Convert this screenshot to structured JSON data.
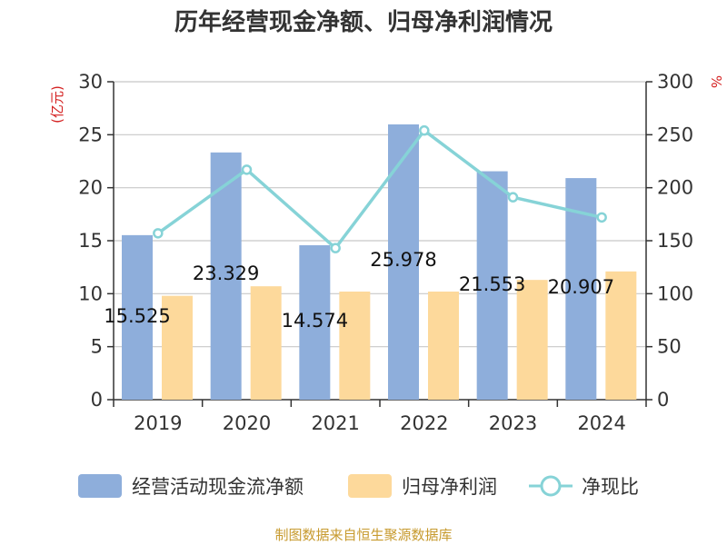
{
  "chart_data": {
    "type": "bar",
    "title": "历年经营现金净额、归母净利润情况",
    "categories": [
      "2019",
      "2020",
      "2021",
      "2022",
      "2023",
      "2024"
    ],
    "series": [
      {
        "name": "经营活动现金流净额",
        "type": "bar",
        "axis": "left",
        "color": "#8eaedb",
        "values": [
          15.525,
          23.329,
          14.574,
          25.978,
          21.553,
          20.907
        ]
      },
      {
        "name": "归母净利润",
        "type": "bar",
        "axis": "left",
        "color": "#fdd99b",
        "values": [
          9.8,
          10.7,
          10.2,
          10.2,
          11.3,
          12.1
        ]
      },
      {
        "name": "净现比",
        "type": "line",
        "axis": "right",
        "color": "#86d3d7",
        "values": [
          157,
          217,
          143,
          254,
          191,
          172
        ]
      }
    ],
    "data_labels": [
      "15.525",
      "23.329",
      "14.574",
      "25.978",
      "21.553",
      "20.907"
    ],
    "y_left": {
      "unit": "(亿元)",
      "ylim": [
        0,
        30
      ],
      "ticks": [
        "0",
        "5",
        "10",
        "15",
        "20",
        "25",
        "30"
      ]
    },
    "y_right": {
      "unit": "%",
      "ylim": [
        0,
        300
      ],
      "ticks": [
        "0",
        "50",
        "100",
        "150",
        "200",
        "250",
        "300"
      ]
    },
    "grid": true,
    "legend_position": "bottom"
  },
  "source_text": "制图数据来自恒生聚源数据库"
}
